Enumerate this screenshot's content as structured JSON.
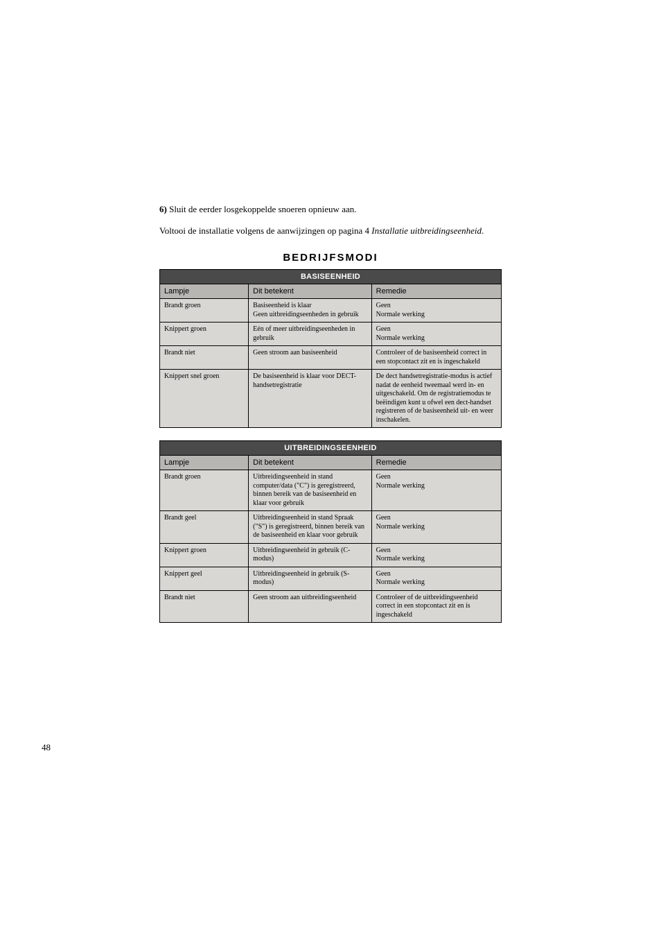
{
  "intro": {
    "step_number": "6)",
    "step_text": "Sluit de eerder losgekoppelde snoeren opnieuw aan.",
    "para2_prefix": "Voltooi de installatie volgens de aanwijzingen op pagina 4 ",
    "para2_italic": "Installatie uitbreidings­eenheid",
    "para2_suffix": "."
  },
  "section_title": "BEDRIJFSMODI",
  "table1": {
    "title": "BASISEENHEID",
    "headers": {
      "c1": "Lampje",
      "c2": "Dit betekent",
      "c3": "Remedie"
    },
    "rows": [
      {
        "c1": "Brandt groen",
        "c2": "Basiseenheid is klaar\nGeen uitbreidingseenheden in gebruik",
        "c3": "Geen\nNormale werking"
      },
      {
        "c1": "Knippert groen",
        "c2": "Eén of meer uitbreidingseen­heden in gebruik",
        "c3": "Geen\nNormale werking"
      },
      {
        "c1": "Brandt niet",
        "c2": "Geen stroom aan basiseenheid",
        "c3": "Controleer of de basiseenheid correct in een stopcontact zit en is ingeschakeld"
      },
      {
        "c1": "Knippert snel groen",
        "c2": "De basiseenheid is klaar voor DECT-handsetregistratie",
        "c3": "De dect handsetregistratie-modus is actief nadat de eenheid tweemaal werd in- en uitgeschakeld. Om de registratiemodus te beëindigen kunt u ofwel een dect-handset registreren of de basiseenheid uit- en weer inschakelen."
      }
    ]
  },
  "table2": {
    "title": "UITBREIDINGSEENHEID",
    "headers": {
      "c1": "Lampje",
      "c2": "Dit betekent",
      "c3": "Remedie"
    },
    "rows": [
      {
        "c1": "Brandt groen",
        "c2": "Uitbreidingseenheid in stand computer/data (\"C\") is geregi­streerd, binnen bereik van de basiseenheid en klaar voor gebruik",
        "c3": "Geen\nNormale werking"
      },
      {
        "c1": "Brandt geel",
        "c2": "Uitbreidingseenheid in stand Spraak (\"S\") is geregistreerd, binnen bereik van de basis­eenheid en klaar voor gebruik",
        "c3": "Geen\nNormale werking"
      },
      {
        "c1": "Knippert groen",
        "c2": "Uitbreidingseenheid in gebruik (C-modus)",
        "c3": "Geen\nNormale werking"
      },
      {
        "c1": "Knippert geel",
        "c2": "Uitbreidingseenheid in gebruik (S-modus)",
        "c3": "Geen\nNormale werking"
      },
      {
        "c1": "Brandt niet",
        "c2": "Geen stroom aan uitbreiding­seenheid",
        "c3": "Controleer of de uitbreidingseenheid correct in een stopcontact zit en is ingeschakeld"
      }
    ]
  },
  "page_number": "48",
  "style": {
    "table": {
      "header_bg": "#4a4a4a",
      "header_fg": "#ffffff",
      "colhead_bg": "#b7b6b3",
      "cell_bg": "#d8d7d3",
      "border_color": "#000000"
    }
  }
}
